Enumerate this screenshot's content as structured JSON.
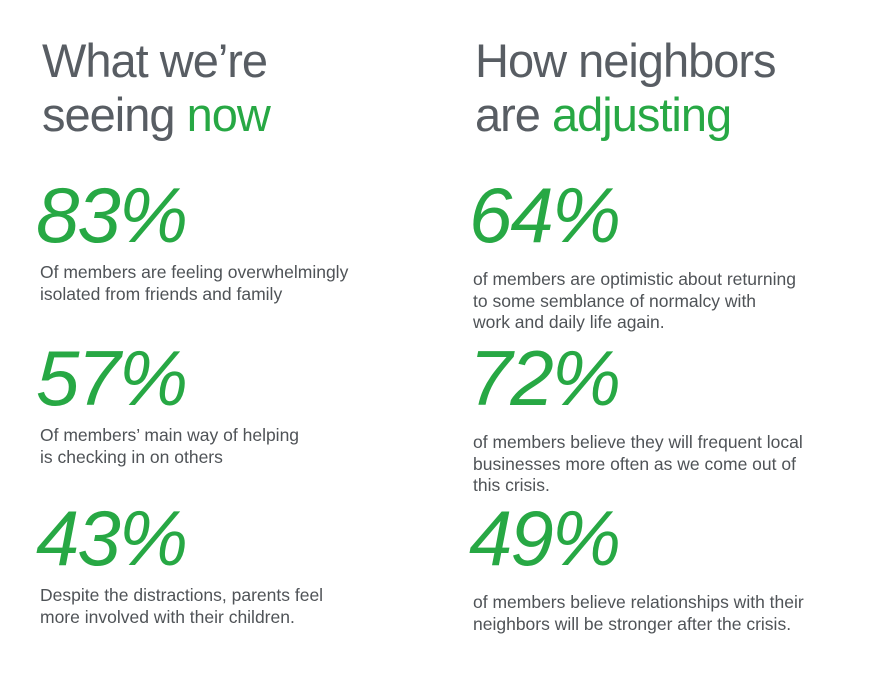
{
  "left": {
    "heading": {
      "line1": "What we’re",
      "line2_plain": "seeing ",
      "line2_accent": "now"
    },
    "stats": [
      {
        "value": "83%",
        "description": "Of members are feeling overwhelmingly\nisolated from friends and family"
      },
      {
        "value": "57%",
        "description": "Of members’ main way of helping\nis checking in on others"
      },
      {
        "value": "43%",
        "description": "Despite the distractions, parents feel\nmore involved with their children."
      }
    ]
  },
  "right": {
    "heading": {
      "line1": "How neighbors",
      "line2_plain": "are ",
      "line2_accent": "adjusting"
    },
    "stats": [
      {
        "value": "64%",
        "description": "of members are optimistic about returning\nto some semblance of normalcy with\nwork and daily life again."
      },
      {
        "value": "72%",
        "description": "of members believe they will frequent local\nbusinesses more often as we come out of\nthis crisis."
      },
      {
        "value": "49%",
        "description": "of members believe relationships with their\nneighbors will be stronger after the crisis."
      }
    ]
  },
  "colors": {
    "accent": "#27a844",
    "heading": "#585d63",
    "body_text": "#4f5357",
    "background": "#ffffff"
  }
}
